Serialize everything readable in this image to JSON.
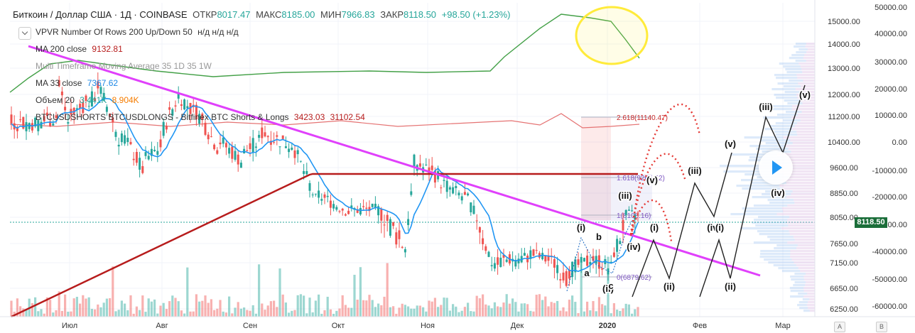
{
  "header": {
    "title": "Биткоин / Доллар США · 1Д · COINBASE",
    "open_label": "ОТКР",
    "open": "8017.47",
    "high_label": "МАКС",
    "high": "8185.00",
    "low_label": "МИН",
    "low": "7966.83",
    "close_label": "ЗАКР",
    "close": "8118.50",
    "change": "+98.50 (+1.23%)"
  },
  "indicators": {
    "vpvr": {
      "label": "VPVR Number Of Rows 200 Up/Down 50",
      "vals": "н/д н/д н/д"
    },
    "ma200": {
      "label": "MA 200 close",
      "value": "9132.81"
    },
    "mtf": {
      "label": "Multi Timeframe Moving Average 35 1D 35 1W"
    },
    "ma33": {
      "label": "MA 33 close",
      "value": "7367.62"
    },
    "volume": {
      "label": "Объем 20",
      "v1": "3.441K",
      "v2": "8.904K"
    },
    "shorts": {
      "label": "BTCUSDSHORTS BTCUSDLONGS - Bitfinex BTC Shorts & Longs",
      "v1": "3423.03",
      "v2": "31102.54"
    }
  },
  "last_price_badge": "8118.50",
  "buttons": {
    "log": "A",
    "auto": "B"
  },
  "colors": {
    "up": "#26a69a",
    "down": "#ef5350",
    "ma200": "#b71c1c",
    "ma33": "#2196f3",
    "trendline": "#e040fb",
    "longs": "#43a047",
    "shorts": "#e57373",
    "highlight": "#ffeb3b"
  },
  "chart_data": {
    "type": "candlestick",
    "x_ticks": [
      "Июл",
      "Авг",
      "Сен",
      "Окт",
      "Ноя",
      "Дек",
      "2020",
      "Фев",
      "Мар"
    ],
    "price_axis": {
      "ticks": [
        "15000.00",
        "14000.00",
        "13000.00",
        "12000.00",
        "11200.00",
        "10400.00",
        "9600.00",
        "8850.00",
        "8050.00",
        "7650.00",
        "7150.00",
        "6650.00",
        "6250.00"
      ],
      "ylim": [
        6000,
        15500
      ]
    },
    "secondary_axis": {
      "ticks": [
        "50000.00",
        "40000.00",
        "30000.00",
        "20000.00",
        "10000.00",
        "0.00",
        "-10000.00",
        "-20000.00",
        "-30000.00",
        "-40000.00",
        "-50000.00",
        "-60000.00"
      ],
      "ylim": [
        -65000,
        50000
      ]
    },
    "price_path": [
      [
        "Июн-20",
        8000,
        11000
      ],
      [
        "Июн-27",
        11200,
        12500
      ],
      [
        "Июл-01",
        10800,
        11200
      ],
      [
        "Июл-10",
        12000,
        12400
      ],
      [
        "Июл-17",
        10500,
        10800
      ],
      [
        "Июл-25",
        9500,
        9800
      ],
      [
        "Авг-01",
        10300,
        10700
      ],
      [
        "Авг-06",
        11800,
        12100
      ],
      [
        "Авг-12",
        11300,
        11500
      ],
      [
        "Авг-20",
        10200,
        10500
      ],
      [
        "Авг-28",
        9800,
        10000
      ],
      [
        "Сен-05",
        10500,
        10700
      ],
      [
        "Сен-15",
        10300,
        10400
      ],
      [
        "Сен-24",
        8500,
        8800
      ],
      [
        "Окт-05",
        8200,
        8300
      ],
      [
        "Окт-15",
        8300,
        8200
      ],
      [
        "Окт-24",
        7500,
        7800
      ],
      [
        "Окт-26",
        9200,
        9800
      ],
      [
        "Ноя-05",
        9300,
        9200
      ],
      [
        "Ноя-15",
        8600,
        8500
      ],
      [
        "Ноя-22",
        7300,
        7200
      ],
      [
        "Ноя-25",
        7100,
        7200
      ],
      [
        "Дек-05",
        7300,
        7400
      ],
      [
        "Дек-15",
        7100,
        7000
      ],
      [
        "Дек-18",
        6800,
        7000
      ],
      [
        "Дек-25",
        7200,
        7300
      ],
      [
        "Янв-03",
        7000,
        7400
      ],
      [
        "Янв-07",
        8100,
        8100
      ],
      [
        "Янв-10",
        8118,
        8118
      ]
    ],
    "annotations": {
      "fib": [
        {
          "label": "2.618(11140.47)"
        },
        {
          "label": "1.618(9265.52)"
        },
        {
          "label": "1(8108.16)"
        },
        {
          "label": "0(6879.62)"
        }
      ],
      "waves": [
        "(i)",
        "(ii)",
        "(iii)",
        "(iv)",
        "(v)",
        "a",
        "b",
        "c"
      ]
    }
  }
}
